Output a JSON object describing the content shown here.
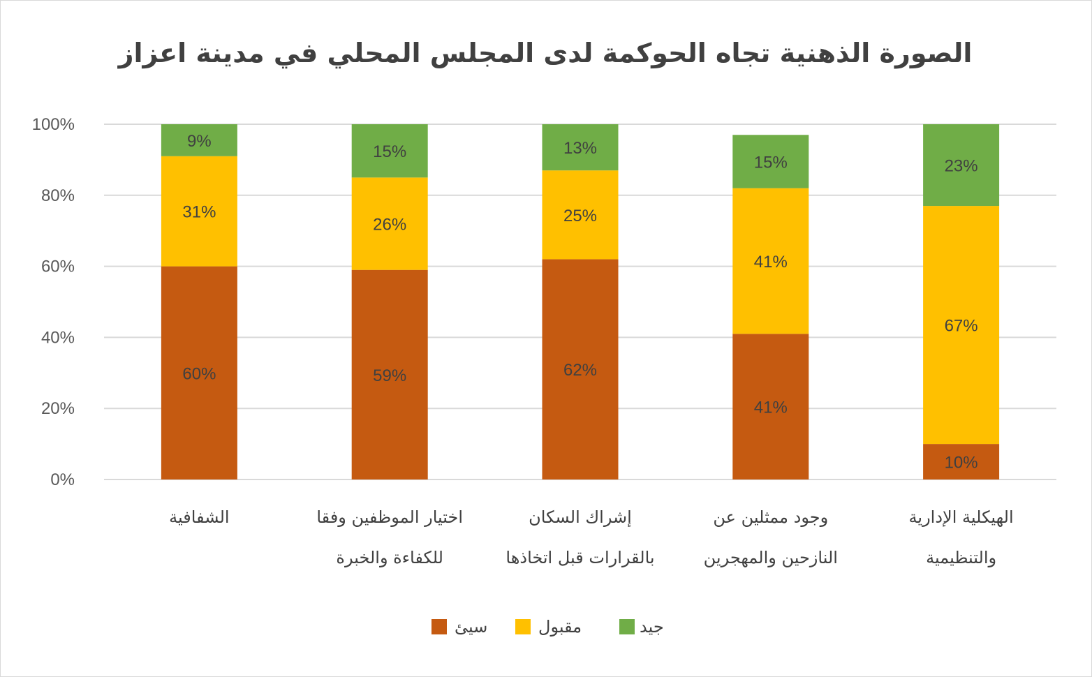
{
  "chart_data": {
    "type": "bar",
    "stacked": true,
    "title": "الصورة الذهنية تجاه الحوكمة لدى المجلس المحلي في مدينة اعزاز",
    "categories": [
      [
        "الشفافية"
      ],
      [
        "اختيار الموظفين وفقا",
        "للكفاءة والخبرة"
      ],
      [
        "إشراك السكان",
        "بالقرارات قبل اتخاذها"
      ],
      [
        "وجود ممثلين عن",
        "النازحين والمهجرين"
      ],
      [
        "الهيكلية الإدارية",
        "والتنظيمية"
      ]
    ],
    "series": [
      {
        "name": "سيئ",
        "color": "#C55A11",
        "values": [
          60,
          59,
          62,
          41,
          10
        ],
        "labels": [
          "60%",
          "59%",
          "62%",
          "41%",
          "10%"
        ]
      },
      {
        "name": "مقبول",
        "color": "#FFC000",
        "values": [
          31,
          26,
          25,
          41,
          67
        ],
        "labels": [
          "31%",
          "26%",
          "25%",
          "41%",
          "67%"
        ]
      },
      {
        "name": "جيد",
        "color": "#70AD47",
        "values": [
          9,
          15,
          13,
          15,
          23
        ],
        "labels": [
          "9%",
          "15%",
          "13%",
          "15%",
          "23%"
        ]
      }
    ],
    "yaxis": {
      "min": 0,
      "max": 100,
      "ticks": [
        "0%",
        "20%",
        "40%",
        "60%",
        "80%",
        "100%"
      ]
    },
    "grid": true,
    "legend": {
      "position": "bottom",
      "order": [
        "جيد",
        "مقبول",
        "سيئ"
      ]
    },
    "gridline_color": "#d9d9d9"
  }
}
